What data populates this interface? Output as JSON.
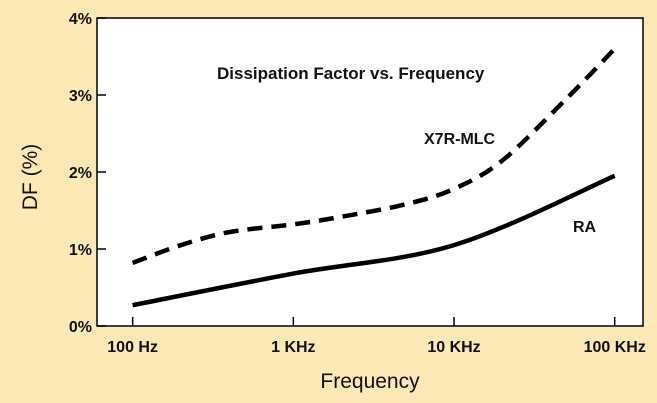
{
  "chart_data": {
    "type": "line",
    "title": "Dissipation Factor vs. Frequency",
    "xlabel": "Frequency",
    "ylabel": "DF (%)",
    "x_scale": "log",
    "x_ticks": [
      {
        "value": 100,
        "label": "100 Hz"
      },
      {
        "value": 1000,
        "label": "1 KHz"
      },
      {
        "value": 10000,
        "label": "10 KHz"
      },
      {
        "value": 100000,
        "label": "100 KHz"
      }
    ],
    "y_ticks": [
      {
        "value": 0,
        "label": "0%"
      },
      {
        "value": 1,
        "label": "1%"
      },
      {
        "value": 2,
        "label": "2%"
      },
      {
        "value": 3,
        "label": "3%"
      },
      {
        "value": 4,
        "label": "4%"
      }
    ],
    "xlim": [
      60,
      150000
    ],
    "ylim": [
      0,
      4
    ],
    "grid": false,
    "series": [
      {
        "name": "X7R-MLC",
        "style": "dashed",
        "color": "#000000",
        "x": [
          100,
          200,
          400,
          1000,
          2000,
          5000,
          10000,
          20000,
          50000,
          100000
        ],
        "y": [
          0.82,
          1.05,
          1.22,
          1.32,
          1.42,
          1.58,
          1.78,
          2.15,
          2.95,
          3.6
        ]
      },
      {
        "name": "RA",
        "style": "solid",
        "color": "#000000",
        "x": [
          100,
          1000,
          10000,
          100000
        ],
        "y": [
          0.27,
          0.68,
          1.05,
          1.95
        ]
      }
    ]
  }
}
